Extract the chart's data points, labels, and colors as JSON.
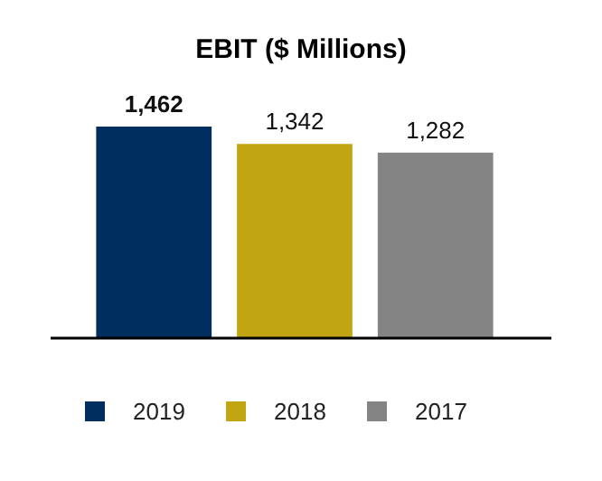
{
  "chart_data": {
    "type": "bar",
    "title": "EBIT ($ Millions)",
    "categories": [
      null
    ],
    "series": [
      {
        "name": "2019",
        "color": "#002f5f",
        "values": [
          1462
        ],
        "value_labels": [
          "1,462"
        ]
      },
      {
        "name": "2018",
        "color": "#c2a512",
        "values": [
          1342
        ],
        "value_labels": [
          "1,342"
        ]
      },
      {
        "name": "2017",
        "color": "#848484",
        "values": [
          1282
        ],
        "value_labels": [
          "1,282"
        ]
      }
    ],
    "legend": "bottom"
  }
}
